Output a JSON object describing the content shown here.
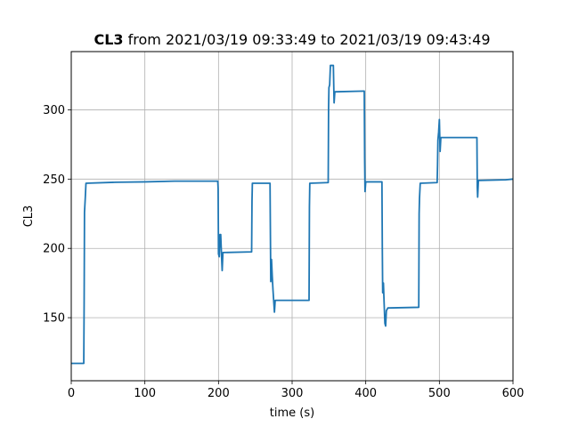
{
  "chart_data": {
    "type": "line",
    "title": {
      "bold": "CL3",
      "rest": " from 2021/03/19 09:33:49 to 2021/03/19 09:43:49"
    },
    "xlabel": "time (s)",
    "ylabel": "CL3",
    "xlim": [
      0,
      600
    ],
    "ylim": [
      104.5,
      342
    ],
    "xticks": [
      0,
      100,
      200,
      300,
      400,
      500,
      600
    ],
    "yticks": [
      150,
      200,
      250,
      300
    ],
    "grid": true,
    "series": [
      {
        "color": "#1f77b4",
        "points": [
          [
            0,
            117
          ],
          [
            17,
            117
          ],
          [
            17.5,
            160
          ],
          [
            18,
            226
          ],
          [
            19,
            236
          ],
          [
            20,
            247
          ],
          [
            60,
            247.7
          ],
          [
            100,
            248
          ],
          [
            140,
            248.5
          ],
          [
            199,
            248.5
          ],
          [
            199.5,
            243
          ],
          [
            200,
            196
          ],
          [
            201,
            194
          ],
          [
            202,
            210
          ],
          [
            203,
            210
          ],
          [
            204,
            196
          ],
          [
            205,
            184
          ],
          [
            206,
            197
          ],
          [
            245,
            197.5
          ],
          [
            245.5,
            234
          ],
          [
            246,
            247
          ],
          [
            270,
            247
          ],
          [
            270.5,
            210
          ],
          [
            271,
            176
          ],
          [
            272,
            192
          ],
          [
            273,
            180
          ],
          [
            274,
            170
          ],
          [
            275,
            162
          ],
          [
            276,
            154
          ],
          [
            277,
            162.5
          ],
          [
            323,
            162.5
          ],
          [
            323.5,
            230
          ],
          [
            324,
            247
          ],
          [
            349,
            247.5
          ],
          [
            349.5,
            300
          ],
          [
            350,
            316
          ],
          [
            351,
            318
          ],
          [
            352,
            332
          ],
          [
            356,
            332
          ],
          [
            357,
            305
          ],
          [
            358,
            313
          ],
          [
            398,
            313.5
          ],
          [
            398.5,
            265
          ],
          [
            399,
            241
          ],
          [
            400,
            248
          ],
          [
            422,
            248
          ],
          [
            422.5,
            200
          ],
          [
            423,
            168
          ],
          [
            424,
            175
          ],
          [
            425,
            160
          ],
          [
            426,
            146
          ],
          [
            427,
            144
          ],
          [
            428,
            155
          ],
          [
            430,
            157
          ],
          [
            472,
            157.5
          ],
          [
            472.5,
            225
          ],
          [
            473,
            236
          ],
          [
            474,
            247
          ],
          [
            497,
            247.5
          ],
          [
            497.5,
            260
          ],
          [
            498,
            278
          ],
          [
            499,
            284
          ],
          [
            500,
            293
          ],
          [
            501,
            270
          ],
          [
            502,
            280
          ],
          [
            551,
            280
          ],
          [
            551.5,
            244
          ],
          [
            552,
            237
          ],
          [
            553,
            249
          ],
          [
            590,
            249.5
          ],
          [
            600,
            250
          ]
        ]
      }
    ]
  }
}
